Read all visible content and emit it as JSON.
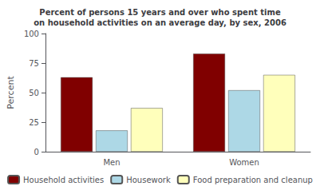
{
  "chart_data": {
    "type": "bar",
    "title": "Percent of persons 15 years and over who spent time\non household activities on an average day, by sex, 2006",
    "categories": [
      "Men",
      "Women"
    ],
    "series": [
      {
        "name": "Household activities",
        "values": [
          63,
          83
        ],
        "color": "#800000"
      },
      {
        "name": "Housework",
        "values": [
          18,
          52
        ],
        "color": "#ADD8E6"
      },
      {
        "name": "Food preparation and cleanup",
        "values": [
          37,
          65
        ],
        "color": "#FFFFBB"
      }
    ],
    "ylabel": "Percent",
    "ylim": [
      0,
      100
    ],
    "yticks": [
      0,
      25,
      50,
      75,
      100
    ],
    "grid": false,
    "legend": "bottom"
  }
}
